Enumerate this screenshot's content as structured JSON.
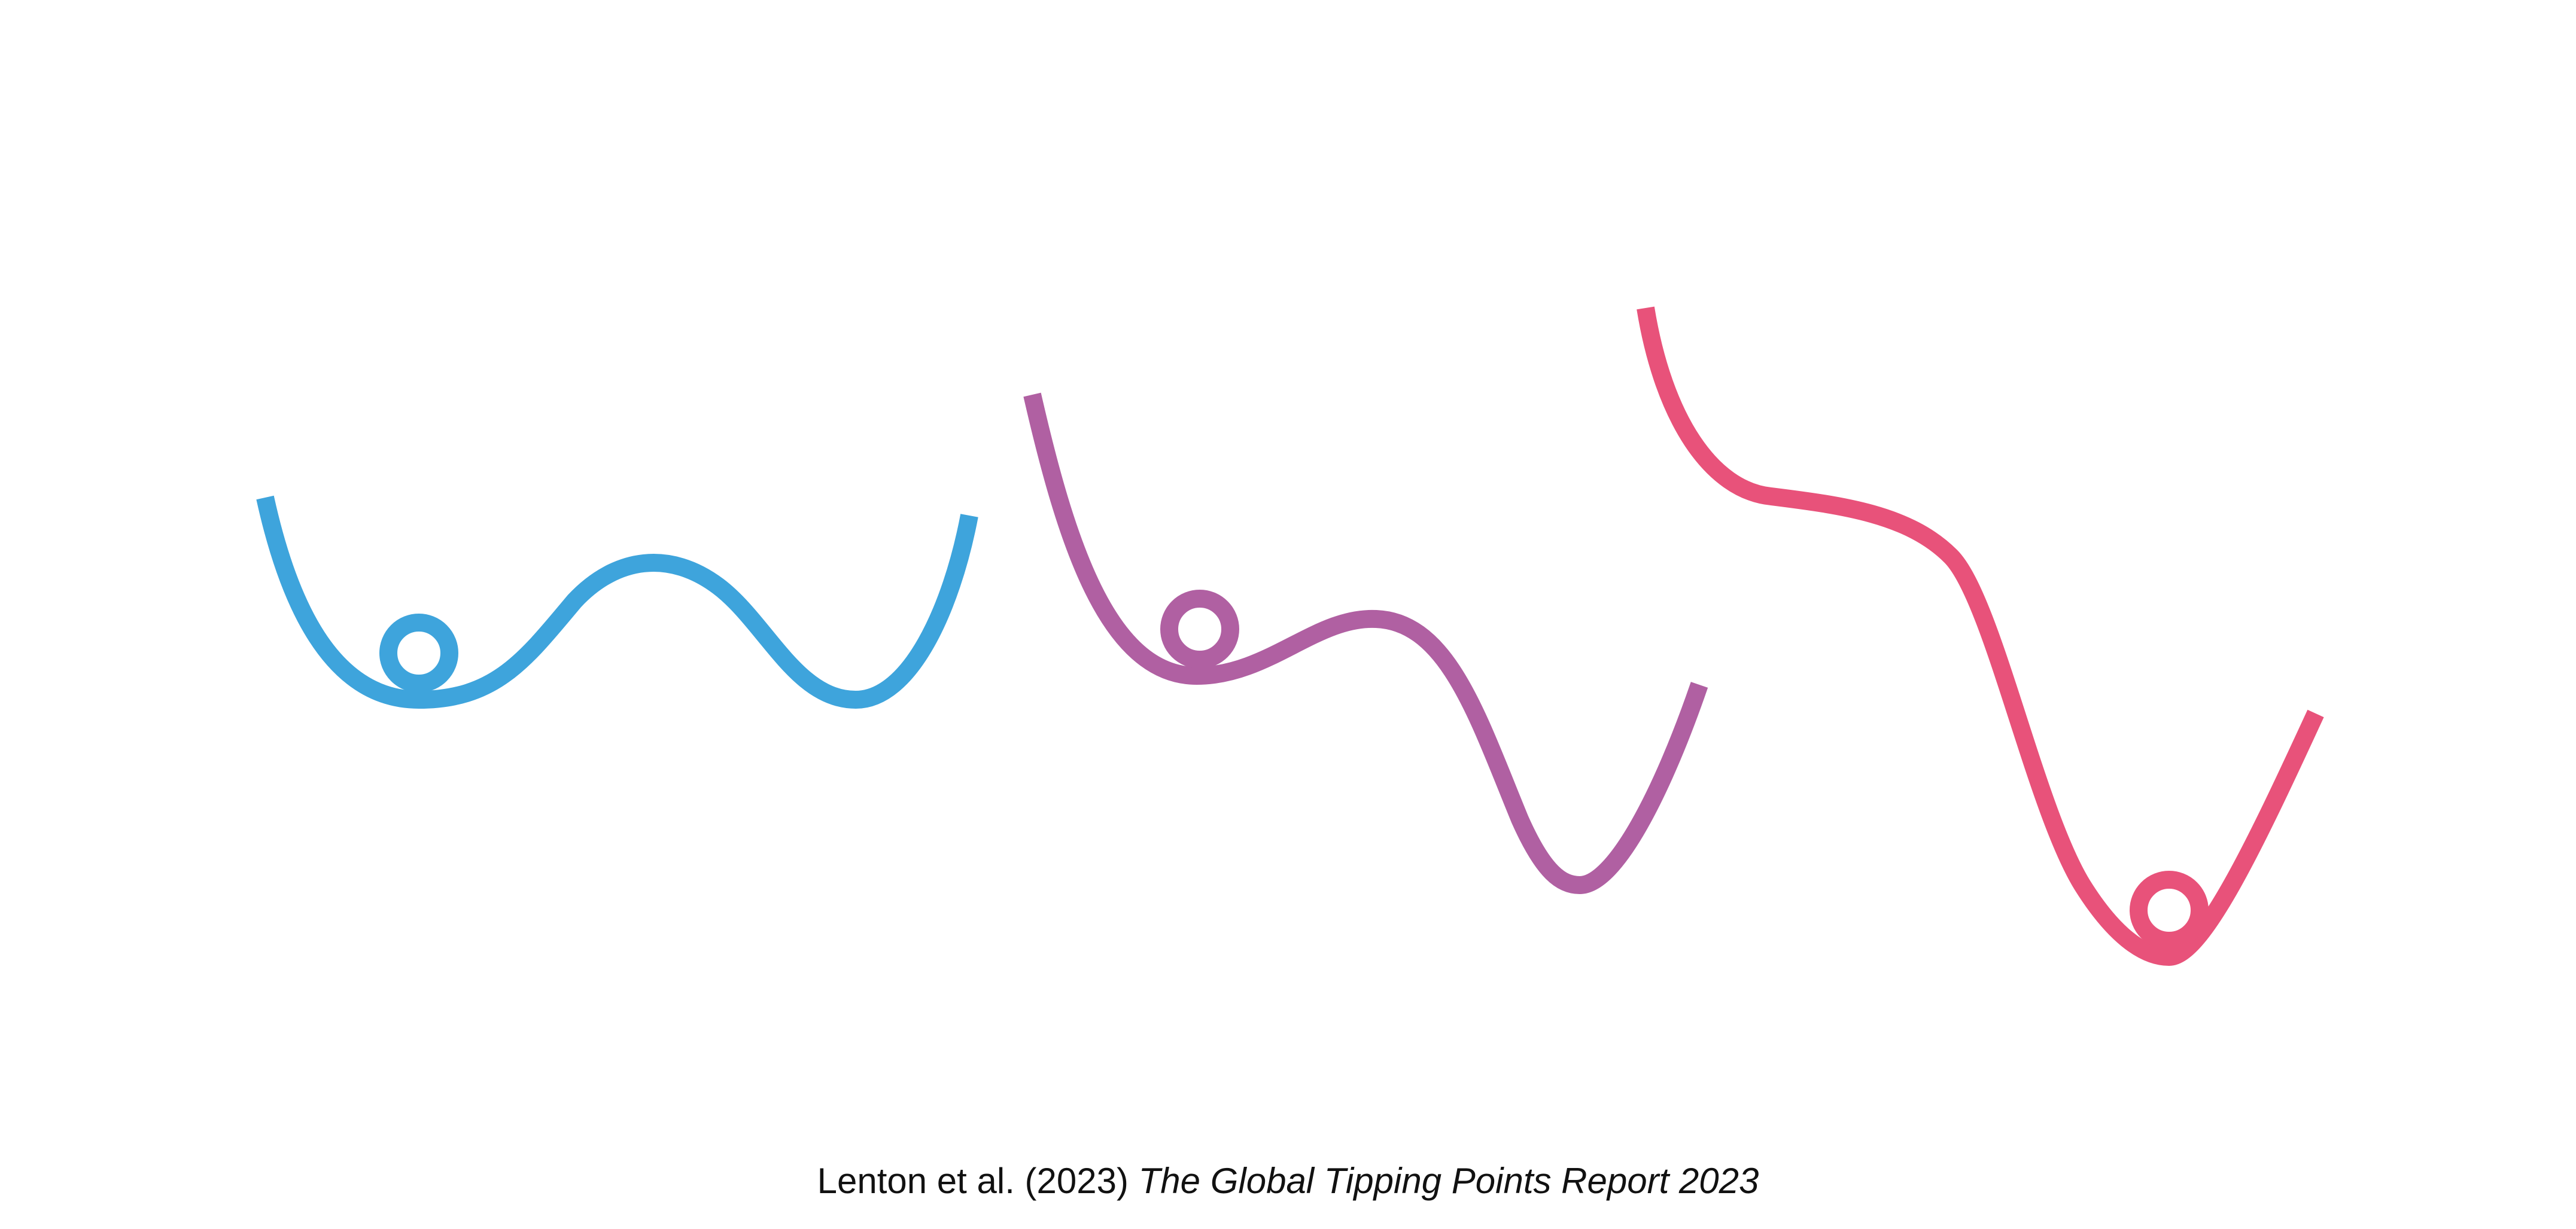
{
  "panels": [
    {
      "id": "stable",
      "color": "#3ea4dc",
      "ball_color": "#3ea4dc"
    },
    {
      "id": "destabilising",
      "color": "#b060a2",
      "ball_color": "#b060a2"
    },
    {
      "id": "tipped",
      "color": "#e8527a",
      "ball_color": "#e8527a"
    }
  ],
  "citation": {
    "authors": "Lenton et al. (2023)",
    "title": "The Global Tipping Points Report 2023"
  }
}
